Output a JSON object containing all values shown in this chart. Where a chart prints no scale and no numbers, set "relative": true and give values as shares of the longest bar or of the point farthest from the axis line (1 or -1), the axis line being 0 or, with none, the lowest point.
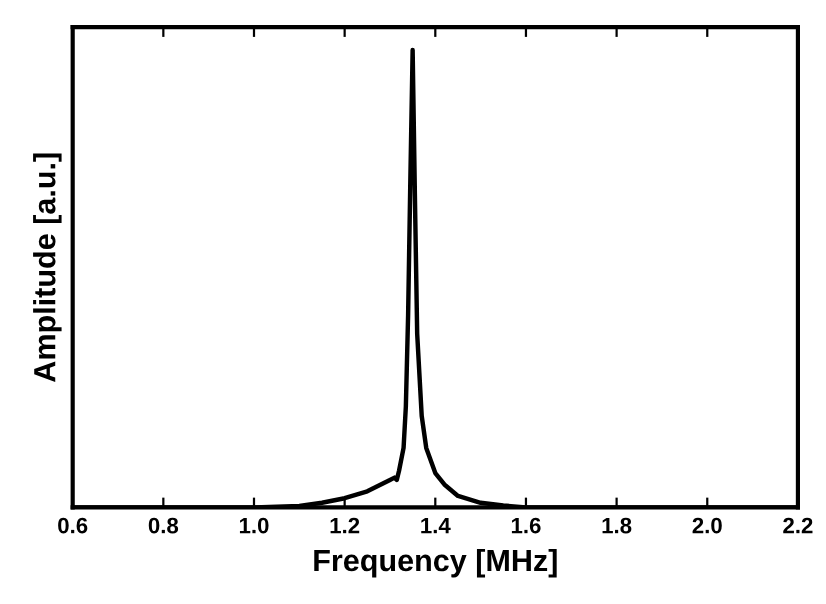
{
  "chart_data": {
    "type": "line",
    "xlabel": "Frequency [MHz]",
    "ylabel": "Amplitude [a.u.]",
    "relative": true,
    "xlim": [
      0.6,
      2.2
    ],
    "xticks": [
      {
        "value": 0.6,
        "label": "0.6"
      },
      {
        "value": 0.8,
        "label": "0.8"
      },
      {
        "value": 1.0,
        "label": "1.0"
      },
      {
        "value": 1.2,
        "label": "1.2"
      },
      {
        "value": 1.4,
        "label": "1.4"
      },
      {
        "value": 1.6,
        "label": "1.6"
      },
      {
        "value": 1.8,
        "label": "1.8"
      },
      {
        "value": 2.0,
        "label": "2.0"
      },
      {
        "value": 2.2,
        "label": "2.2"
      }
    ],
    "tick_labels": "x",
    "grid": false,
    "legend": false,
    "marker": "none",
    "line_style": "solid",
    "series": [
      {
        "color": "#000000",
        "x": [
          0.6,
          1.0,
          1.1,
          1.15,
          1.2,
          1.25,
          1.28,
          1.3,
          1.31,
          1.315,
          1.32,
          1.33,
          1.335,
          1.34,
          1.345,
          1.35,
          1.355,
          1.36,
          1.37,
          1.38,
          1.4,
          1.42,
          1.45,
          1.5,
          1.55,
          1.6,
          2.2
        ],
        "values": [
          0,
          0,
          0.003,
          0.01,
          0.02,
          0.035,
          0.05,
          0.06,
          0.065,
          0.06,
          0.08,
          0.13,
          0.22,
          0.42,
          0.72,
          1.0,
          0.68,
          0.38,
          0.2,
          0.13,
          0.075,
          0.05,
          0.025,
          0.01,
          0.004,
          0,
          0
        ]
      }
    ]
  }
}
